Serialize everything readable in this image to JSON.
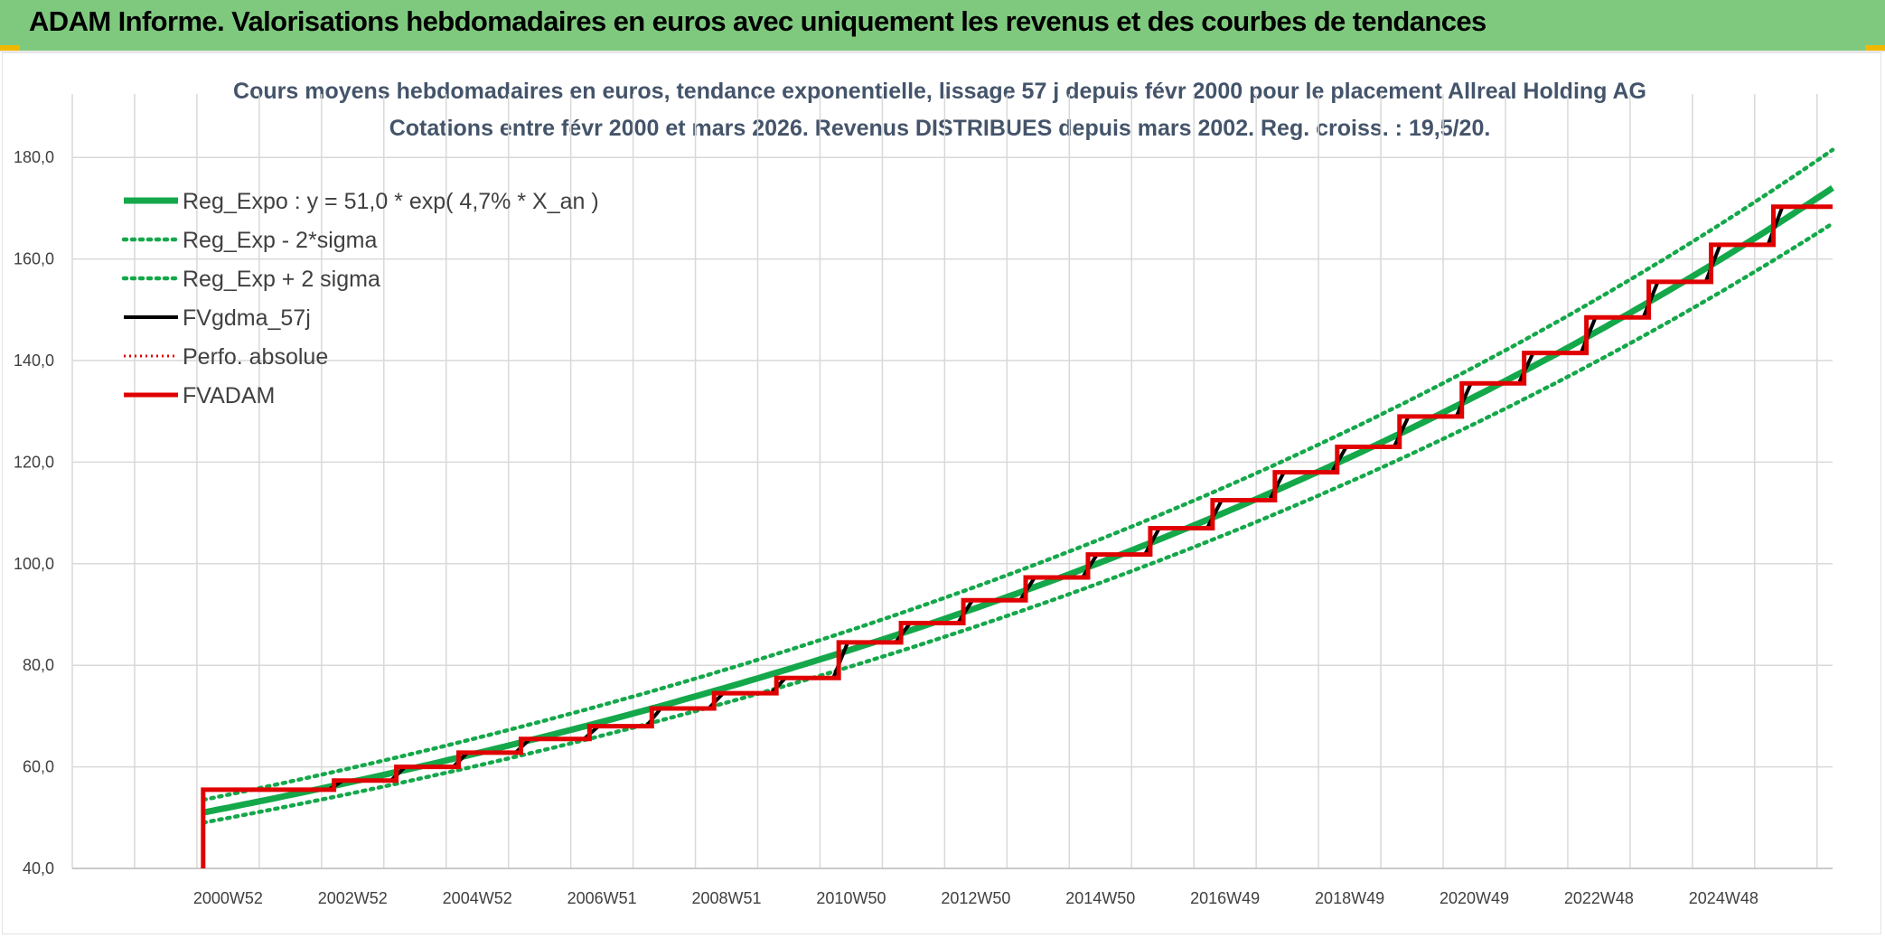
{
  "banner": {
    "title": "ADAM Informe. Valorisations hebdomadaires en euros avec uniquement les revenus et des courbes de tendances"
  },
  "colors": {
    "banner_bg": "#7fc97f",
    "trend": "#14a84a",
    "sigma": "#14a84a",
    "smoothing": "#000000",
    "perf": "#e00000",
    "fvadam": "#e00000",
    "grid": "#d9d9d9"
  },
  "chart_data": {
    "type": "line",
    "title": "Cours moyens hebdomadaires en euros, tendance exponentielle, lissage 57 j depuis févr 2000 pour le placement Allreal Holding AG",
    "subtitle": "Cotations entre févr 2000 et mars 2026. Revenus DISTRIBUES depuis mars 2002. Reg. croiss. : 19,5/20.",
    "ylim": [
      40,
      190
    ],
    "y_ticks": [
      "40,0",
      "60,0",
      "80,0",
      "100,0",
      "120,0",
      "140,0",
      "160,0",
      "180,0"
    ],
    "x_ticks": [
      "2000W52",
      "2002W52",
      "2004W52",
      "2006W51",
      "2008W51",
      "2010W50",
      "2012W50",
      "2014W50",
      "2016W49",
      "2018W49",
      "2020W49",
      "2022W48",
      "2024W48"
    ],
    "xlim": [
      1998.0,
      2026.25
    ],
    "grid": true,
    "legend_position": "top-left",
    "series": [
      {
        "name": "Reg_Expo : y = 51,0 * exp( 4,7% *  X_an )",
        "style": "solid-thick",
        "curve": "exponential",
        "x": [
          2000.1,
          2026.25
        ],
        "y": [
          51.0,
          174.0
        ]
      },
      {
        "name": "Reg_Exp - 2*sigma",
        "style": "dotted",
        "curve": "exponential",
        "x": [
          2000.1,
          2026.25
        ],
        "y": [
          49.0,
          167.0
        ]
      },
      {
        "name": "Reg_Exp + 2 sigma",
        "style": "dotted",
        "curve": "exponential",
        "x": [
          2000.1,
          2026.25
        ],
        "y": [
          53.5,
          181.5
        ]
      },
      {
        "name": "FVgdma_57j",
        "style": "solid",
        "curve": "smoothed-steps",
        "step_x": [
          2000.1,
          2002.2,
          2003.2,
          2004.2,
          2005.2,
          2006.3,
          2007.3,
          2008.3,
          2009.3,
          2010.3,
          2011.3,
          2012.3,
          2013.3,
          2014.3,
          2015.3,
          2016.3,
          2017.3,
          2018.3,
          2019.3,
          2020.3,
          2021.3,
          2022.3,
          2023.3,
          2024.3,
          2025.3
        ],
        "step_y": [
          55.5,
          57.3,
          60.0,
          62.8,
          65.5,
          68.0,
          71.5,
          74.5,
          77.5,
          84.5,
          88.3,
          92.8,
          97.3,
          101.8,
          107.0,
          112.5,
          118.0,
          123.0,
          129.0,
          135.5,
          141.5,
          148.5,
          155.5,
          162.8,
          170.3
        ],
        "x_end": 2026.25
      },
      {
        "name": "Perfo. absolue",
        "style": "dotted-red",
        "curve": "none",
        "x": [],
        "y": []
      },
      {
        "name": "FVADAM",
        "style": "solid-thick-red",
        "curve": "steps",
        "start": [
          2000.1,
          40.0
        ],
        "step_x": [
          2000.1,
          2002.2,
          2003.2,
          2004.2,
          2005.2,
          2006.3,
          2007.3,
          2008.3,
          2009.3,
          2010.3,
          2011.3,
          2012.3,
          2013.3,
          2014.3,
          2015.3,
          2016.3,
          2017.3,
          2018.3,
          2019.3,
          2020.3,
          2021.3,
          2022.3,
          2023.3,
          2024.3,
          2025.3
        ],
        "step_y": [
          55.5,
          57.3,
          60.0,
          62.8,
          65.5,
          68.0,
          71.5,
          74.5,
          77.5,
          84.5,
          88.3,
          92.8,
          97.3,
          101.8,
          107.0,
          112.5,
          118.0,
          123.0,
          129.0,
          135.5,
          141.5,
          148.5,
          155.5,
          162.8,
          170.3
        ],
        "x_end": 2026.25
      }
    ]
  }
}
